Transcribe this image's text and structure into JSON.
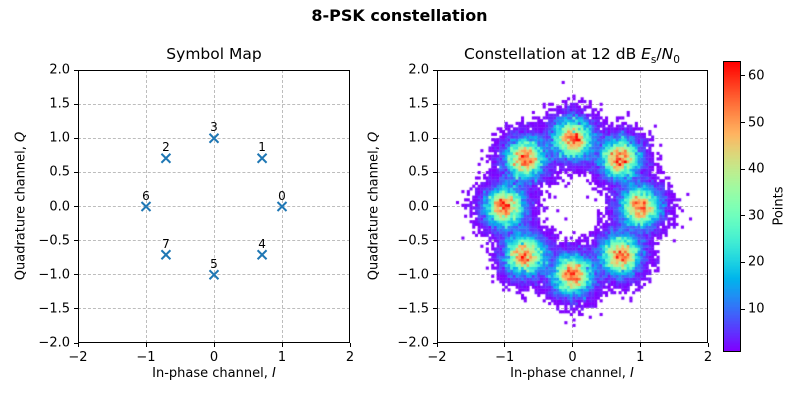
{
  "figure": {
    "title": "8-PSK constellation",
    "background": "#ffffff"
  },
  "chart_data": [
    {
      "type": "scatter",
      "title": "Symbol Map",
      "xlabel": {
        "prefix": "In-phase channel, ",
        "var": "I"
      },
      "ylabel": {
        "prefix": "Quadrature channel, ",
        "var": "Q"
      },
      "xlim": [
        -2,
        2
      ],
      "ylim": [
        -2,
        2
      ],
      "xticks": [
        {
          "v": -2,
          "label": "−2"
        },
        {
          "v": -1,
          "label": "−1"
        },
        {
          "v": 0,
          "label": "0"
        },
        {
          "v": 1,
          "label": "1"
        },
        {
          "v": 2,
          "label": "2"
        }
      ],
      "yticks": [
        {
          "v": -2.0,
          "label": "−2.0"
        },
        {
          "v": -1.5,
          "label": "−1.5"
        },
        {
          "v": -1.0,
          "label": "−1.0"
        },
        {
          "v": -0.5,
          "label": "−0.5"
        },
        {
          "v": 0.0,
          "label": "0.0"
        },
        {
          "v": 0.5,
          "label": "0.5"
        },
        {
          "v": 1.0,
          "label": "1.0"
        },
        {
          "v": 1.5,
          "label": "1.5"
        },
        {
          "v": 2.0,
          "label": "2.0"
        }
      ],
      "grid": true,
      "marker": "x",
      "marker_color": "#1f77b4",
      "points": [
        {
          "label": "0",
          "x": 1.0,
          "y": 0.0
        },
        {
          "label": "1",
          "x": 0.707,
          "y": 0.707
        },
        {
          "label": "2",
          "x": -0.707,
          "y": 0.707
        },
        {
          "label": "3",
          "x": 0.0,
          "y": 1.0
        },
        {
          "label": "4",
          "x": 0.707,
          "y": -0.707
        },
        {
          "label": "5",
          "x": 0.0,
          "y": -1.0
        },
        {
          "label": "6",
          "x": -1.0,
          "y": 0.0
        },
        {
          "label": "7",
          "x": -0.707,
          "y": -0.707
        }
      ]
    },
    {
      "type": "heatmap",
      "title": {
        "prefix": "Constellation at 12 dB ",
        "var1": "E",
        "sub1": "s",
        "sep": "/",
        "var2": "N",
        "sub2": "0"
      },
      "xlabel": {
        "prefix": "In-phase channel, ",
        "var": "I"
      },
      "ylabel": {
        "prefix": "Quadrature channel, ",
        "var": "Q"
      },
      "xlim": [
        -2,
        2
      ],
      "ylim": [
        -2,
        2
      ],
      "xticks": [
        {
          "v": -2,
          "label": "−2"
        },
        {
          "v": -1,
          "label": "−1"
        },
        {
          "v": 0,
          "label": "0"
        },
        {
          "v": 1,
          "label": "1"
        },
        {
          "v": 2,
          "label": "2"
        }
      ],
      "yticks": [
        {
          "v": -2.0,
          "label": "−2.0"
        },
        {
          "v": -1.5,
          "label": "−1.5"
        },
        {
          "v": -1.0,
          "label": "−1.0"
        },
        {
          "v": -0.5,
          "label": "−0.5"
        },
        {
          "v": 0.0,
          "label": "0.0"
        },
        {
          "v": 0.5,
          "label": "0.5"
        },
        {
          "v": 1.0,
          "label": "1.0"
        },
        {
          "v": 1.5,
          "label": "1.5"
        },
        {
          "v": 2.0,
          "label": "2.0"
        }
      ],
      "grid": true,
      "bins": 100,
      "colormap": "rainbow",
      "snr_db": 12,
      "noise_sigma": 0.178,
      "points_per_cluster": 7000,
      "cluster_centers": [
        [
          1.0,
          0.0
        ],
        [
          0.707,
          0.707
        ],
        [
          -0.707,
          0.707
        ],
        [
          0.0,
          1.0
        ],
        [
          0.707,
          -0.707
        ],
        [
          0.0,
          -1.0
        ],
        [
          -1.0,
          0.0
        ],
        [
          -0.707,
          -0.707
        ]
      ],
      "colorbar": {
        "label": "Points",
        "ticks": [
          10,
          20,
          30,
          40,
          50,
          60
        ],
        "vmin": 1,
        "vmax": 63
      }
    }
  ]
}
